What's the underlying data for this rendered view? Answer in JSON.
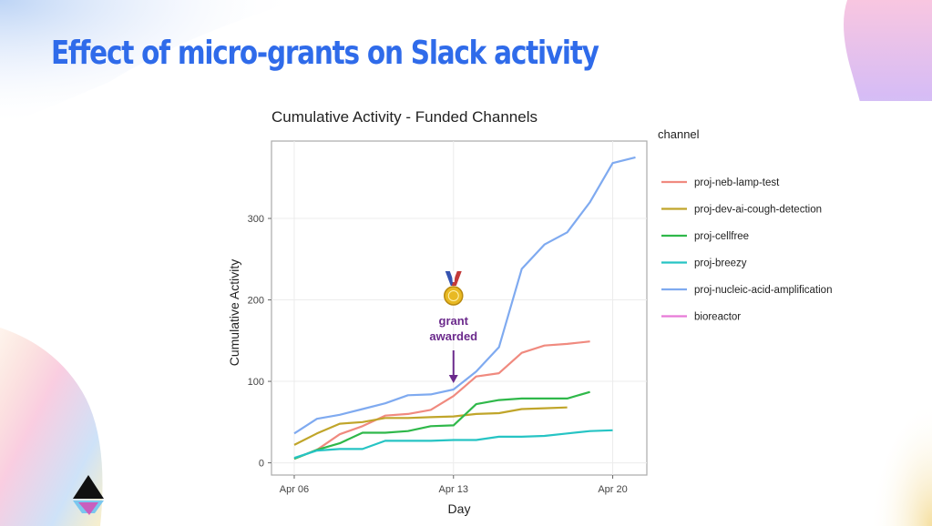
{
  "slide": {
    "title": "Effect of micro-grants on Slack activity"
  },
  "colors": {
    "title": "#2f6bea",
    "annotation": "#6b2a8c"
  },
  "chart_data": {
    "type": "line",
    "title": "Cumulative Activity - Funded Channels",
    "xlabel": "Day",
    "ylabel": "Cumulative Activity",
    "x_start": "Apr 06",
    "x_ticks": [
      {
        "day": 0,
        "label": "Apr 06"
      },
      {
        "day": 7,
        "label": "Apr 13"
      },
      {
        "day": 14,
        "label": "Apr 20"
      }
    ],
    "xlim": [
      -1,
      15.5
    ],
    "y_ticks": [
      0,
      100,
      200,
      300
    ],
    "ylim": [
      -15,
      395
    ],
    "legend_title": "channel",
    "legend_position": "right",
    "annotation": {
      "lines": [
        "grant",
        "awarded"
      ],
      "day": 7,
      "arrow_to": 95,
      "icon": "medal-icon"
    },
    "series": [
      {
        "name": "proj-neb-lamp-test",
        "color": "#f08a7f",
        "points": [
          [
            0,
            5
          ],
          [
            1,
            16
          ],
          [
            2,
            35
          ],
          [
            3,
            45
          ],
          [
            4,
            58
          ],
          [
            5,
            60
          ],
          [
            6,
            65
          ],
          [
            7,
            82
          ],
          [
            8,
            106
          ],
          [
            9,
            110
          ],
          [
            10,
            135
          ],
          [
            11,
            144
          ],
          [
            12,
            146
          ],
          [
            13,
            149
          ]
        ]
      },
      {
        "name": "proj-dev-ai-cough-detection",
        "color": "#c0a52a",
        "points": [
          [
            0,
            22
          ],
          [
            1,
            36
          ],
          [
            2,
            48
          ],
          [
            3,
            50
          ],
          [
            4,
            55
          ],
          [
            5,
            55
          ],
          [
            6,
            56
          ],
          [
            7,
            57
          ],
          [
            8,
            60
          ],
          [
            9,
            61
          ],
          [
            10,
            66
          ],
          [
            11,
            67
          ],
          [
            12,
            68
          ]
        ]
      },
      {
        "name": "proj-cellfree",
        "color": "#2fb84a",
        "points": [
          [
            0,
            5
          ],
          [
            1,
            16
          ],
          [
            2,
            24
          ],
          [
            3,
            37
          ],
          [
            4,
            37
          ],
          [
            5,
            39
          ],
          [
            6,
            45
          ],
          [
            7,
            46
          ],
          [
            8,
            72
          ],
          [
            9,
            77
          ],
          [
            10,
            79
          ],
          [
            11,
            79
          ],
          [
            12,
            79
          ],
          [
            13,
            87
          ]
        ]
      },
      {
        "name": "proj-breezy",
        "color": "#26c4c4",
        "points": [
          [
            0,
            6
          ],
          [
            1,
            15
          ],
          [
            2,
            17
          ],
          [
            3,
            17
          ],
          [
            4,
            27
          ],
          [
            5,
            27
          ],
          [
            6,
            27
          ],
          [
            7,
            28
          ],
          [
            8,
            28
          ],
          [
            9,
            32
          ],
          [
            10,
            32
          ],
          [
            11,
            33
          ],
          [
            12,
            36
          ],
          [
            13,
            39
          ],
          [
            14,
            40
          ]
        ]
      },
      {
        "name": "proj-nucleic-acid-amplification",
        "color": "#7faaf0",
        "points": [
          [
            0,
            36
          ],
          [
            1,
            54
          ],
          [
            2,
            59
          ],
          [
            3,
            66
          ],
          [
            4,
            73
          ],
          [
            5,
            83
          ],
          [
            6,
            84
          ],
          [
            7,
            90
          ],
          [
            8,
            112
          ],
          [
            9,
            142
          ],
          [
            10,
            238
          ],
          [
            11,
            268
          ],
          [
            12,
            283
          ],
          [
            13,
            320
          ],
          [
            14,
            368
          ],
          [
            15,
            375
          ]
        ]
      },
      {
        "name": "bioreactor",
        "color": "#e87ad8",
        "points": []
      }
    ]
  }
}
